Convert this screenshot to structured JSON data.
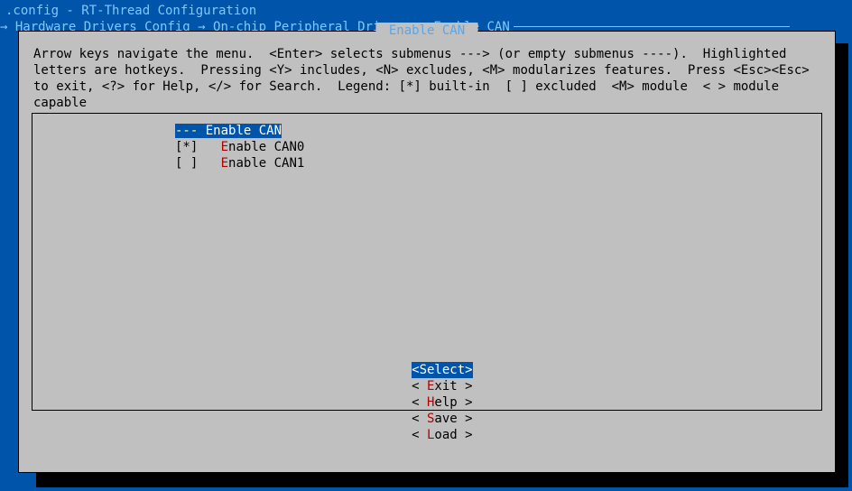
{
  "window": {
    "title": ".config - RT-Thread Configuration",
    "breadcrumb_prefix": "→ ",
    "breadcrumbs": [
      "Hardware Drivers Config",
      "On-chip Peripheral Drivers",
      "Enable CAN"
    ],
    "sep": " → "
  },
  "dialog": {
    "title": " Enable CAN ",
    "help": "Arrow keys navigate the menu.  <Enter> selects submenus ---> (or empty submenus ----).  Highlighted letters are hotkeys.  Pressing <Y> includes, <N> excludes, <M> modularizes features.  Press <Esc><Esc> to exit, <?> for Help, </> for Search.  Legend: [*] built-in  [ ] excluded  <M> module  < > module capable"
  },
  "menu": {
    "items": [
      {
        "bracket": "---",
        "hot": "",
        "rest": " Enable CAN",
        "selected": true
      },
      {
        "bracket": "[*]",
        "hot": "E",
        "rest": "nable CAN0",
        "selected": false
      },
      {
        "bracket": "[ ]",
        "hot": "E",
        "rest": "nable CAN1",
        "selected": false
      }
    ]
  },
  "buttons": {
    "items": [
      {
        "open": "<",
        "hot": "S",
        "rest": "elect",
        "close": ">",
        "selected": true
      },
      {
        "open": "< ",
        "hot": "E",
        "rest": "xit ",
        "close": ">",
        "selected": false
      },
      {
        "open": "< ",
        "hot": "H",
        "rest": "elp ",
        "close": ">",
        "selected": false
      },
      {
        "open": "< ",
        "hot": "S",
        "rest": "ave ",
        "close": ">",
        "selected": false
      },
      {
        "open": "< ",
        "hot": "L",
        "rest": "oad ",
        "close": ">",
        "selected": false
      }
    ]
  },
  "colors": {
    "bg": "#0055aa",
    "panel": "#c0c0c0",
    "title": "#7fc8ff",
    "hotkey": "#b00000",
    "sel_bg": "#0055aa",
    "sel_fg": "#ffffff",
    "sel_bracket_fg": "#ffff80"
  }
}
